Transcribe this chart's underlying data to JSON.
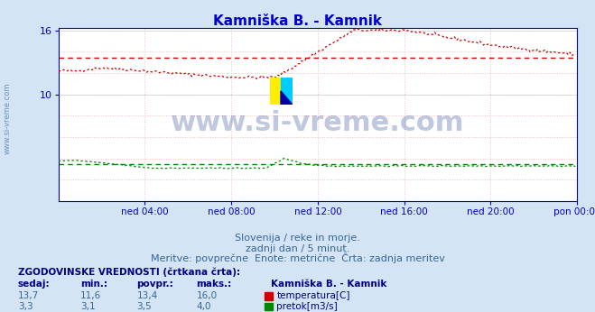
{
  "title": "Kamniška B. - Kamnik",
  "title_color": "#0000cc",
  "bg_color": "#d4e4f4",
  "plot_bg_color": "#ffffff",
  "grid_pink": "#f0c0c0",
  "grid_gray": "#d0d0d0",
  "axis_color": "#0000cc",
  "temp_color": "#cc0000",
  "flow_color": "#008800",
  "avg_temp": 13.4,
  "avg_flow": 3.5,
  "xlim": [
    0,
    288
  ],
  "ymin": 0,
  "ymax": 16.0,
  "ytick_vals": [
    10,
    16
  ],
  "xtick_labels": [
    "ned 04:00",
    "ned 08:00",
    "ned 12:00",
    "ned 16:00",
    "ned 20:00",
    "pon 00:00"
  ],
  "xtick_positions": [
    48,
    96,
    144,
    192,
    240,
    288
  ],
  "watermark": "www.si-vreme.com",
  "watermark_color": "#1a3a8a",
  "side_watermark": "www.si-vreme.com",
  "subtitle1": "Slovenija / reke in morje.",
  "subtitle2": "zadnji dan / 5 minut.",
  "subtitle3": "Meritve: povprečne  Enote: metrične  Črta: zadnja meritev",
  "table_header": "ZGODOVINSKE VREDNOSTI (črtkana črta):",
  "col_headers": [
    "sedaj:",
    "min.:",
    "povpr.:",
    "maks.:"
  ],
  "row1_vals": [
    "13,7",
    "11,6",
    "13,4",
    "16,0"
  ],
  "row2_vals": [
    "3,3",
    "3,1",
    "3,5",
    "4,0"
  ],
  "legend_temp": "temperatura[C]",
  "legend_flow": "pretok[m3/s]",
  "station_label": "Kamniška B. - Kamnik"
}
